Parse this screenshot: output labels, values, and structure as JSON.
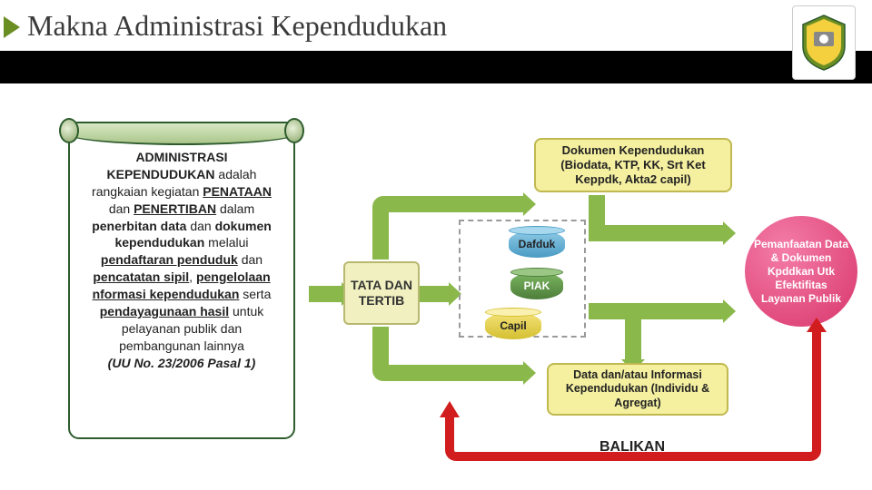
{
  "title": "Makna Administrasi Kependudukan",
  "scroll": {
    "html": "<b>ADMINISTRASI KEPENDUDUKAN</b> adalah rangkaian kegiatan <b><u>PENATAAN</u></b> dan <b><u>PENERTIBAN</u></b> dalam <b>penerbitan data</b> dan <b>dokumen kependudukan</b> melalui <b><u>pendaftaran penduduk</u></b> dan <b><u>pencatatan sipil</u></b>, <b><u>pengelolaan nformasi kependudukan</u></b> serta <b><u>pendayagunaan hasil</u></b> untuk pelayanan publik dan pembangunan lainnya<br><b><i>(UU No. 23/2006 Pasal 1)</i></b>"
  },
  "tata": "TATA DAN TERTIB",
  "doc_box": "Dokumen Kependudukan (Biodata, KTP, KK, Srt Ket Keppdk, Akta2 capil)",
  "data_box": "Data dan/atau Informasi Kependudukan (Individu & Agregat)",
  "pemanfaatan": "Pemanfaatan Data & Dokumen Kpddkan Utk Efektifitas Layanan Publik",
  "cylinders": {
    "dafduk": "Dafduk",
    "piak": "PIAK",
    "capil": "Capil"
  },
  "balikan": "BALIKAN",
  "colors": {
    "green_arrow": "#8ab84a",
    "red_arrow": "#d11d1d",
    "yellow_box": "#f5f0a0",
    "pink_circle": "#d8356a"
  }
}
